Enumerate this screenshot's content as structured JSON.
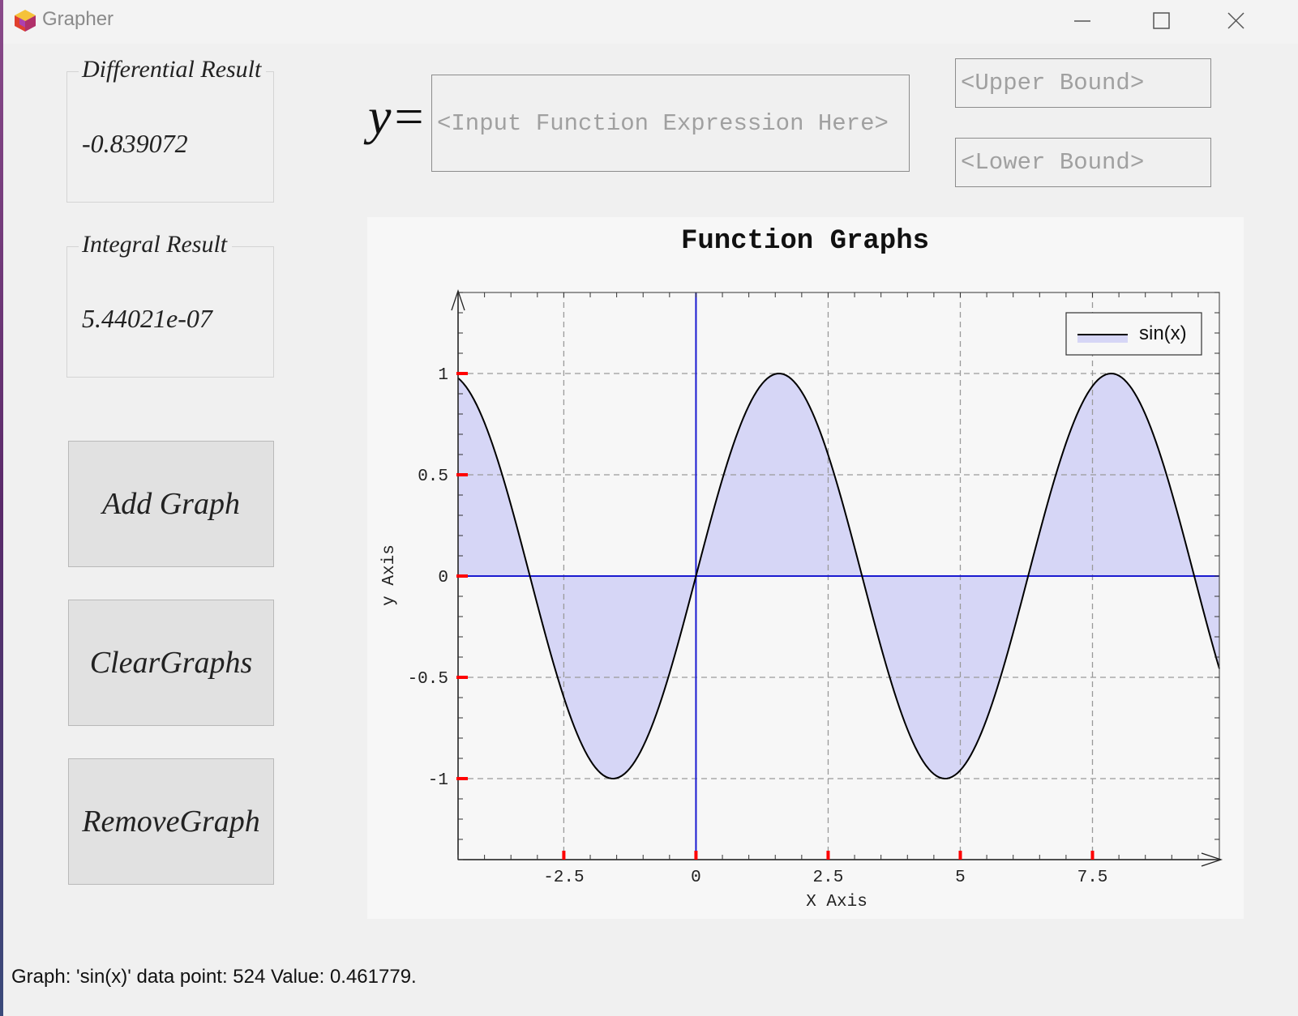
{
  "window": {
    "title": "Grapher",
    "controls": {
      "minimize_icon": "minimize-icon",
      "maximize_icon": "maximize-icon",
      "close_icon": "close-icon"
    }
  },
  "differential": {
    "title": "Differential Result",
    "value": "-0.839072"
  },
  "integral": {
    "title": "Integral Result",
    "value": "5.44021e-07"
  },
  "buttons": {
    "add": "Add Graph",
    "clear": "ClearGraphs",
    "remove": "RemoveGraph"
  },
  "expression": {
    "prefix": "y=",
    "placeholder": "<Input Function Expression Here>",
    "value": ""
  },
  "bounds": {
    "upper_placeholder": "<Upper Bound>",
    "upper_value": "",
    "lower_placeholder": "<Lower Bound>",
    "lower_value": ""
  },
  "chart_data": {
    "type": "line",
    "title": "Function Graphs",
    "xlabel": "X Axis",
    "ylabel": "y Axis",
    "xlim": [
      -4.5,
      9.9
    ],
    "ylim": [
      -1.4,
      1.4
    ],
    "xticks": [
      -2.5,
      0,
      2.5,
      5,
      7.5
    ],
    "xtick_labels": [
      "-2.5",
      "0",
      "2.5",
      "5",
      "7.5"
    ],
    "yticks": [
      1,
      0.5,
      0,
      -0.5,
      -1
    ],
    "ytick_labels": [
      "1",
      "0.5",
      "0",
      "-0.5",
      "-1"
    ],
    "grid": true,
    "legend_position": "top-right",
    "series": [
      {
        "name": "sin(x)",
        "expression": "sin(x)",
        "sample_step": 0.05,
        "color": "#000000",
        "fill": "#d6d6f6"
      }
    ],
    "axis_line_color": "#1a1ad0",
    "tick_marker_color": "#ff0000"
  },
  "status": "Graph: 'sin(x)' data point: 524 Value: 0.461779."
}
